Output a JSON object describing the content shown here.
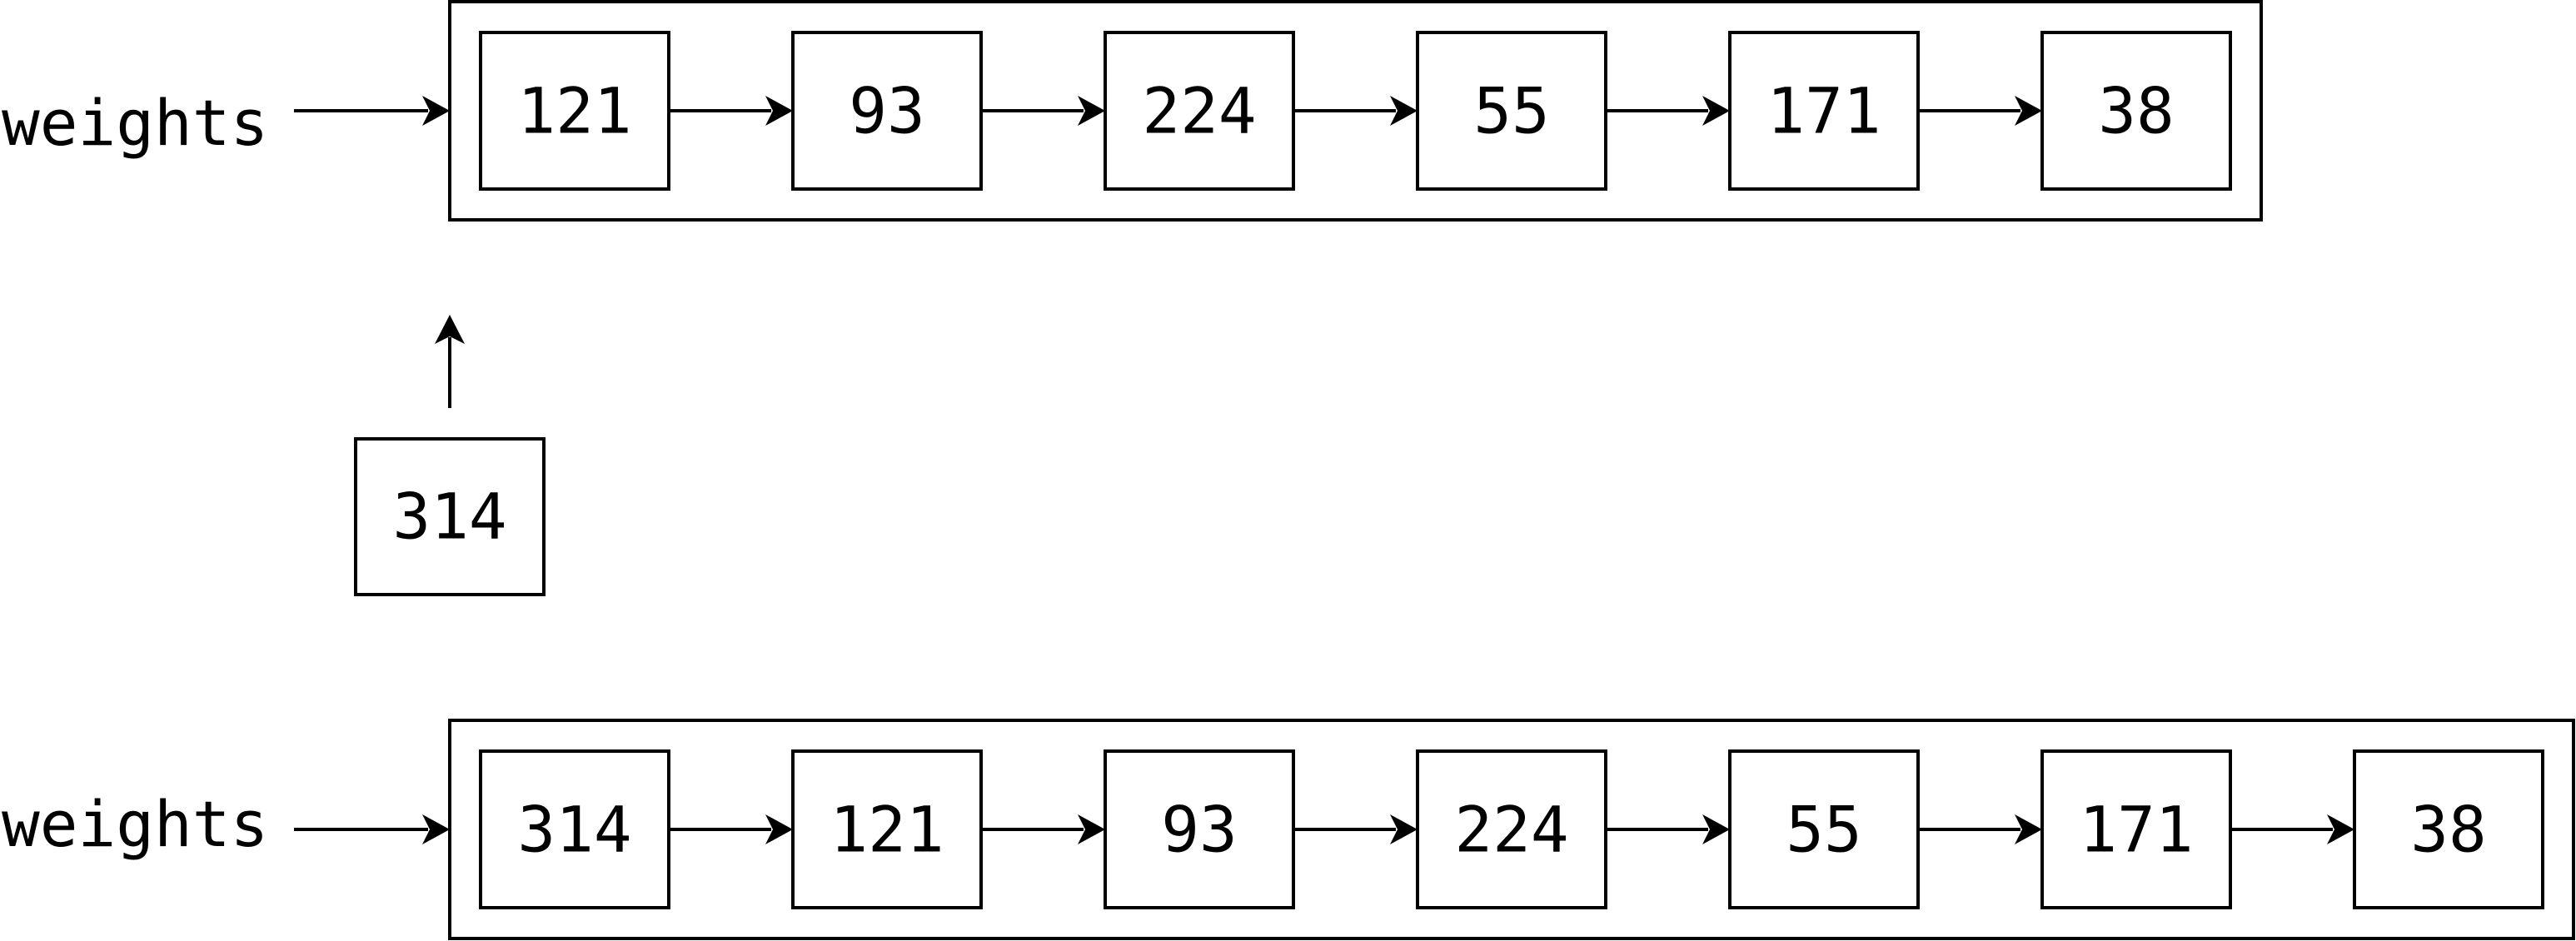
{
  "diagram": {
    "top_row": {
      "label": "weights",
      "nodes": [
        "121",
        "93",
        "224",
        "55",
        "171",
        "38"
      ]
    },
    "new_node": {
      "value": "314"
    },
    "bottom_row": {
      "label": "weights",
      "nodes": [
        "314",
        "121",
        "93",
        "224",
        "55",
        "171",
        "38"
      ]
    }
  }
}
